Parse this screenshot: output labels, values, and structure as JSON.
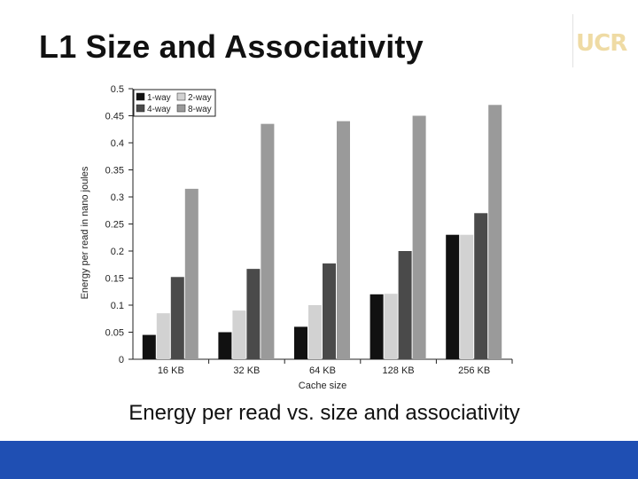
{
  "slide": {
    "title": "L1 Size and Associativity",
    "caption": "Energy per read vs. size and associativity",
    "logo_text": "UCR",
    "colors": {
      "footer": "#1f4fb3",
      "logo": "#efdba4"
    }
  },
  "chart_data": {
    "type": "bar",
    "title": "",
    "xlabel": "Cache size",
    "ylabel": "Energy per read in nano joules",
    "categories": [
      "16 KB",
      "32 KB",
      "64 KB",
      "128 KB",
      "256 KB"
    ],
    "ylim": [
      0,
      0.5
    ],
    "yticks": [
      "0",
      "0.05",
      "0.1",
      "0.15",
      "0.2",
      "0.25",
      "0.3",
      "0.35",
      "0.4",
      "0.45",
      "0.5"
    ],
    "grid": false,
    "legend_position": "top-left",
    "series": [
      {
        "name": "1-way",
        "color": "#111111",
        "values": [
          0.045,
          0.05,
          0.06,
          0.12,
          0.23
        ]
      },
      {
        "name": "2-way",
        "color": "#d2d2d2",
        "values": [
          0.085,
          0.09,
          0.1,
          0.121,
          0.23
        ]
      },
      {
        "name": "4-way",
        "color": "#4a4a4a",
        "values": [
          0.152,
          0.167,
          0.177,
          0.2,
          0.27
        ]
      },
      {
        "name": "8-way",
        "color": "#9a9a9a",
        "values": [
          0.315,
          0.435,
          0.44,
          0.45,
          0.47
        ]
      }
    ]
  }
}
